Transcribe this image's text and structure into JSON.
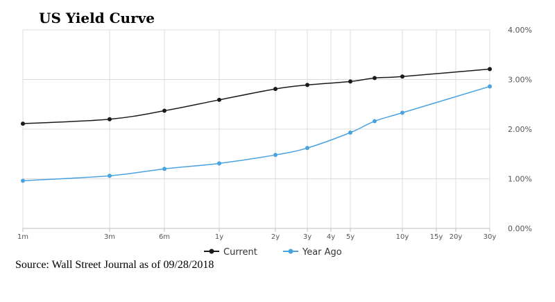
{
  "page": {
    "title": "US Yield Curve",
    "source": "Source: Wall Street Journal as of 09/28/2018"
  },
  "chart_data": {
    "type": "line",
    "title": "US Yield Curve",
    "xlabel": "",
    "ylabel": "",
    "x_ticks": [
      "1m",
      "3m",
      "6m",
      "1y",
      "2y",
      "3y",
      "4y",
      "5y",
      "10y",
      "15y",
      "20y",
      "30y"
    ],
    "y_ticks": [
      "0.00%",
      "1.00%",
      "2.00%",
      "3.00%",
      "4.00%"
    ],
    "ylim": [
      0,
      4
    ],
    "y_axis_side": "right",
    "grid": true,
    "legend_placement": "bottom-center",
    "series": [
      {
        "name": "Current",
        "color": "#1a1a1a",
        "points": [
          {
            "x": "1m",
            "y": 2.11
          },
          {
            "x": "3m",
            "y": 2.2
          },
          {
            "x": "6m",
            "y": 2.37
          },
          {
            "x": "1y",
            "y": 2.59
          },
          {
            "x": "2y",
            "y": 2.81
          },
          {
            "x": "3y",
            "y": 2.89
          },
          {
            "x": "5y",
            "y": 2.96
          },
          {
            "x": "7y",
            "y": 3.03
          },
          {
            "x": "10y",
            "y": 3.06
          },
          {
            "x": "30y",
            "y": 3.21
          }
        ]
      },
      {
        "name": "Year Ago",
        "color": "#4aa3df",
        "points": [
          {
            "x": "1m",
            "y": 0.96
          },
          {
            "x": "3m",
            "y": 1.06
          },
          {
            "x": "6m",
            "y": 1.2
          },
          {
            "x": "1y",
            "y": 1.31
          },
          {
            "x": "2y",
            "y": 1.48
          },
          {
            "x": "3y",
            "y": 1.62
          },
          {
            "x": "5y",
            "y": 1.93
          },
          {
            "x": "7y",
            "y": 2.16
          },
          {
            "x": "10y",
            "y": 2.33
          },
          {
            "x": "30y",
            "y": 2.86
          }
        ]
      }
    ]
  }
}
